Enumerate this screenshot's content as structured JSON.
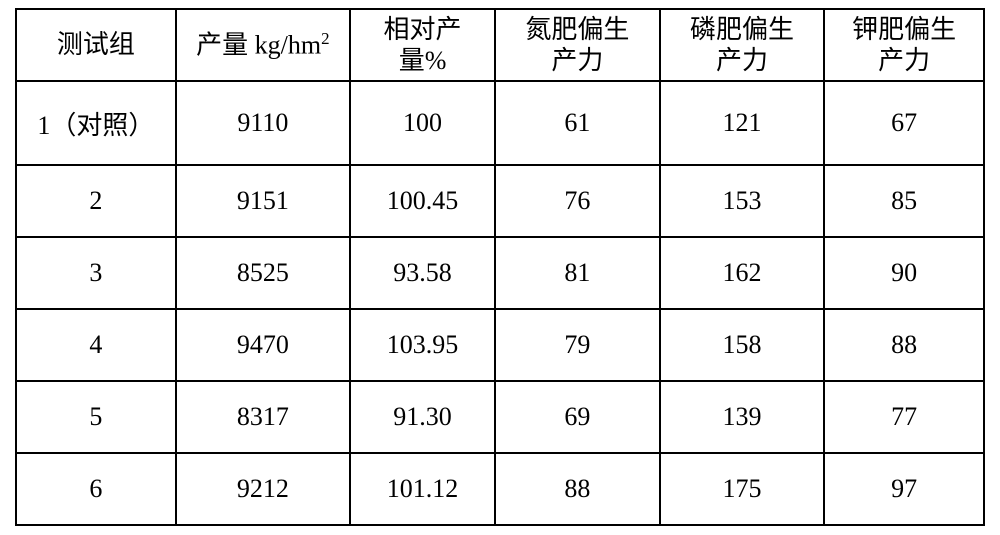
{
  "table": {
    "columns": [
      {
        "label": "测试组",
        "width_pct": 16.5,
        "align": "center"
      },
      {
        "label_html": "产量 kg/hm",
        "sup": "2",
        "width_pct": 18,
        "align": "center"
      },
      {
        "label_line1": "相对产",
        "label_line2": "量%",
        "width_pct": 15,
        "align": "center"
      },
      {
        "label_line1": "氮肥偏生",
        "label_line2": "产力",
        "width_pct": 17,
        "align": "center"
      },
      {
        "label_line1": "磷肥偏生",
        "label_line2": "产力",
        "width_pct": 17,
        "align": "center"
      },
      {
        "label_line1": "钾肥偏生",
        "label_line2": "产力",
        "width_pct": 17,
        "align": "center"
      }
    ],
    "rows": [
      {
        "cells": [
          "1（对照）",
          "9110",
          "100",
          "61",
          "121",
          "67"
        ],
        "tall": true
      },
      {
        "cells": [
          "2",
          "9151",
          "100.45",
          "76",
          "153",
          "85"
        ]
      },
      {
        "cells": [
          "3",
          "8525",
          "93.58",
          "81",
          "162",
          "90"
        ]
      },
      {
        "cells": [
          "4",
          "9470",
          "103.95",
          "79",
          "158",
          "88"
        ]
      },
      {
        "cells": [
          "5",
          "8317",
          "91.30",
          "69",
          "139",
          "77"
        ]
      },
      {
        "cells": [
          "6",
          "9212",
          "101.12",
          "88",
          "175",
          "97"
        ]
      }
    ],
    "border_color": "#000000",
    "background_color": "#ffffff",
    "text_color": "#000000",
    "font_size_pt": 20,
    "font_family": "SimSun"
  }
}
